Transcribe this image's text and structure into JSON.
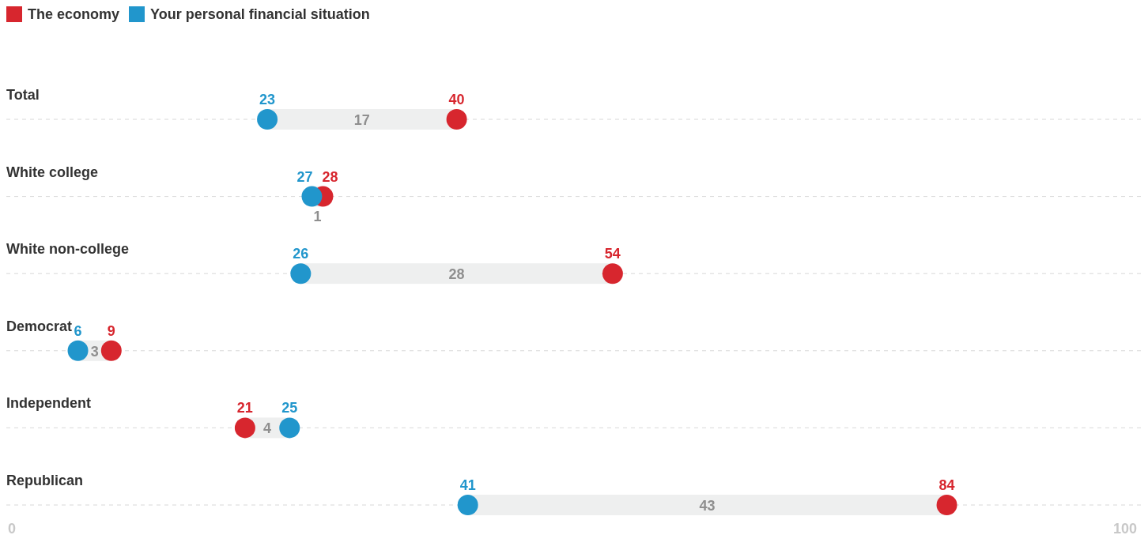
{
  "chart_data": {
    "type": "bar",
    "orientation": "horizontal",
    "categories": [
      "Total",
      "White college",
      "White non-college",
      "Democrat",
      "Independent",
      "Republican"
    ],
    "series": [
      {
        "type": "bar",
        "color": "#eeefef",
        "base": [
          23,
          27,
          26,
          6,
          21,
          41
        ],
        "values": [
          17,
          1,
          28,
          3,
          4,
          43
        ]
      },
      {
        "type": "scatter",
        "name": "The economy",
        "color": "#d7262e",
        "values": [
          40,
          28,
          54,
          9,
          21,
          84
        ]
      },
      {
        "type": "scatter",
        "name": "Your personal financial situation",
        "color": "#2196cc",
        "values": [
          23,
          27,
          26,
          6,
          25,
          41
        ]
      }
    ],
    "xlim": [
      0,
      100
    ],
    "xticks": [
      0,
      100
    ],
    "grid": "y",
    "legend": "top left",
    "marker": "circle",
    "data_labels": true
  }
}
